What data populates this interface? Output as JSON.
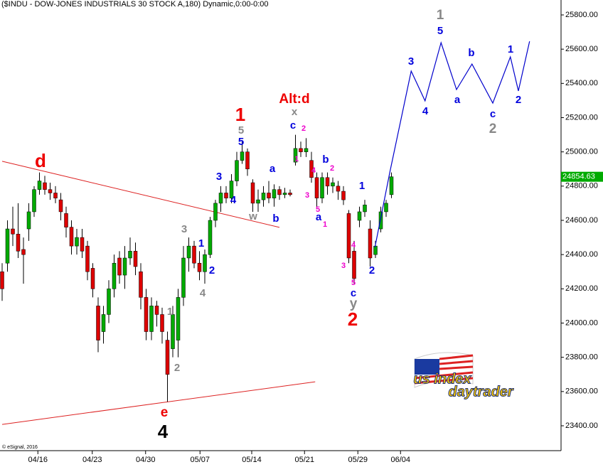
{
  "chart_data": {
    "type": "candlestick",
    "title": "($INDU - DOW-JONES INDUSTRIALS 30 STOCK A,180) Dynamic,0:00-0:00",
    "credit": "© eSignal, 2016",
    "logo": [
      "us index",
      "daytrader"
    ],
    "open": [
      24300,
      24350,
      24550,
      24520,
      24430,
      24550,
      24650,
      24780,
      24820,
      24780,
      24760,
      24720,
      24640,
      24560,
      24450,
      24500,
      24450,
      24320,
      24100,
      23950,
      24050,
      24200,
      24380,
      24280,
      24380,
      24420,
      24300,
      24150,
      23950,
      24100,
      24050,
      23900,
      23850,
      23900,
      24150,
      24380,
      24450,
      24350,
      24300,
      24400,
      24600,
      24700,
      24760,
      24730,
      24830,
      24950,
      25000,
      24820,
      24700,
      24720,
      24760,
      24730,
      24780,
      24750,
      24760,
      24940,
      25020,
      25000,
      24950,
      24850,
      24730,
      24850,
      24800,
      24800,
      24770,
      24640,
      24420,
      24600,
      24650,
      24550,
      24400,
      24550,
      24650,
      24750
    ],
    "high": [
      24350,
      24600,
      24680,
      24700,
      24500,
      24700,
      24800,
      24880,
      24860,
      24820,
      24800,
      24760,
      24680,
      24600,
      24550,
      24550,
      24480,
      24350,
      24150,
      24100,
      24250,
      24400,
      24420,
      24450,
      24500,
      24470,
      24350,
      24200,
      24150,
      24130,
      24090,
      23950,
      24100,
      24200,
      24450,
      24500,
      24480,
      24420,
      24430,
      24620,
      24720,
      24800,
      24800,
      24870,
      25000,
      25060,
      25020,
      24840,
      24780,
      24800,
      24830,
      24810,
      24800,
      24790,
      24780,
      25100,
      25060,
      25080,
      25000,
      24880,
      24880,
      24880,
      24850,
      24830,
      24800,
      24660,
      24480,
      24680,
      24720,
      24600,
      24480,
      24680,
      24720,
      24880
    ],
    "low": [
      24130,
      24300,
      24450,
      24380,
      24230,
      24480,
      24620,
      24750,
      24750,
      24720,
      24700,
      24600,
      24500,
      24400,
      24400,
      24380,
      24250,
      24150,
      23830,
      23880,
      24000,
      24150,
      24230,
      24200,
      24340,
      24280,
      24080,
      23900,
      23900,
      23980,
      23880,
      23540,
      23800,
      23800,
      24100,
      24300,
      24320,
      24250,
      24230,
      24380,
      24560,
      24650,
      24700,
      24700,
      24800,
      24930,
      24860,
      24650,
      24650,
      24680,
      24700,
      24680,
      24720,
      24730,
      24740,
      24920,
      24970,
      24970,
      24820,
      24680,
      24700,
      24750,
      24760,
      24720,
      24690,
      24350,
      24230,
      24560,
      24620,
      24330,
      24380,
      24530,
      24620,
      24730
    ],
    "close": [
      24200,
      24550,
      24520,
      24420,
      24400,
      24650,
      24780,
      24830,
      24780,
      24760,
      24730,
      24650,
      24560,
      24450,
      24500,
      24420,
      24300,
      24200,
      23900,
      24050,
      24200,
      24350,
      24280,
      24380,
      24420,
      24330,
      24150,
      23950,
      24100,
      24050,
      23950,
      23700,
      24050,
      24150,
      24380,
      24450,
      24350,
      24300,
      24400,
      24600,
      24700,
      24760,
      24730,
      24830,
      24950,
      25000,
      24900,
      24700,
      24720,
      24760,
      24730,
      24780,
      24750,
      24760,
      24750,
      25020,
      25000,
      25020,
      24850,
      24730,
      24850,
      24800,
      24820,
      24770,
      24720,
      24380,
      24260,
      24650,
      24690,
      24380,
      24450,
      24650,
      24700,
      24854.63
    ],
    "up_color": "#00aa00",
    "down_color": "#dd0000",
    "last_price": 24854.63,
    "projection": {
      "color": "#0000cc",
      "x": [
        69.9,
        72.7,
        76.7,
        79.3,
        82.3,
        85.2,
        88.1,
        92.0,
        95.3,
        96.8,
        98.9
      ],
      "values": [
        24442,
        24882,
        25472,
        25298,
        25638,
        25364,
        25513,
        25285,
        25555,
        25356,
        25646
      ]
    },
    "trendlines": [
      {
        "color": "#dd2222",
        "x": [
          0,
          52
        ],
        "values": [
          24945,
          24559
        ]
      },
      {
        "color": "#dd2222",
        "x": [
          0,
          58.7
        ],
        "values": [
          23408,
          23657
        ]
      }
    ],
    "annotations": [
      "d",
      "1",
      "Alt:d",
      "x",
      "5",
      "5",
      "c",
      "2",
      "1",
      "4",
      "b",
      "2",
      "3",
      "5",
      "a",
      "1",
      "a",
      "3",
      "4",
      "w",
      "b",
      "3",
      "1",
      "2",
      "4",
      "1",
      "2",
      "e",
      "4",
      "1",
      "4",
      "3",
      "2",
      "5",
      "c",
      "y",
      "2",
      "1",
      "5",
      "3",
      "b",
      "1",
      "4",
      "a",
      "c",
      "2",
      "2"
    ],
    "xlim": [
      0,
      105
    ],
    "xticks": [
      {
        "value": 6.7,
        "label": "04/16"
      },
      {
        "value": 16.9,
        "label": "04/23"
      },
      {
        "value": 26.9,
        "label": "04/30"
      },
      {
        "value": 37.1,
        "label": "05/07"
      },
      {
        "value": 46.8,
        "label": "05/14"
      },
      {
        "value": 56.7,
        "label": "05/21"
      },
      {
        "value": 66.7,
        "label": "05/29"
      },
      {
        "value": 74.7,
        "label": "06/04"
      }
    ],
    "ylim": [
      23400,
      25800
    ],
    "yticks": [
      {
        "value": 23400,
        "label": "23400.00"
      },
      {
        "value": 23600,
        "label": "23600.00"
      },
      {
        "value": 23800,
        "label": "23800.00"
      },
      {
        "value": 24000,
        "label": "24000.00"
      },
      {
        "value": 24200,
        "label": "24200.00"
      },
      {
        "value": 24400,
        "label": "24400.00"
      },
      {
        "value": 24600,
        "label": "24600.00"
      },
      {
        "value": 24800,
        "label": "24800.00"
      },
      {
        "value": 25000,
        "label": "25000.00"
      },
      {
        "value": 25200,
        "label": "25200.00"
      },
      {
        "value": 25400,
        "label": "25400.00"
      },
      {
        "value": 25600,
        "label": "25600.00"
      },
      {
        "value": 25800,
        "label": "25800.00"
      }
    ]
  }
}
